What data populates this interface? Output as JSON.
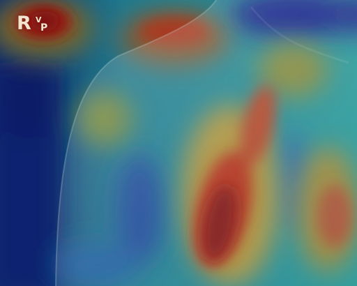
{
  "image": {
    "kind": "heatmap-overlay-radiograph",
    "colormap": "jet",
    "colors": {
      "cold": "#0a1f7a",
      "cool": "#1e7fa8",
      "mid": "#2fa59a",
      "warm": "#c9a23a",
      "hot": "#b5331f",
      "hottest": "#8c1416"
    }
  },
  "marker": {
    "main": "R",
    "superscript": "V",
    "subscript": "P"
  }
}
